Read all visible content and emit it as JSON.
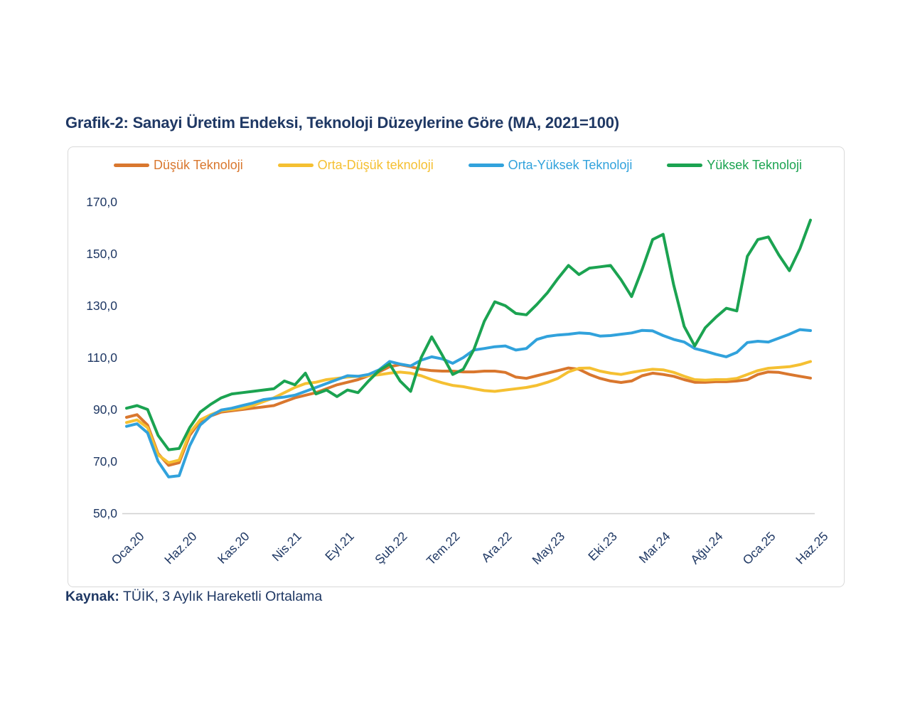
{
  "page": {
    "title": "Grafik-2: Sanayi Üretim Endeksi, Teknoloji Düzeylerine Göre (MA, 2021=100)",
    "source_label": "Kaynak:",
    "source_text": " TÜİK, 3 Aylık Hareketli Ortalama"
  },
  "colors": {
    "title_text": "#1f3864",
    "axis_text": "#1f3864",
    "card_border": "#d9d9d9",
    "axis_line": "#cfcfcf",
    "series_low": "#d9772e",
    "series_midlow": "#f5c032",
    "series_midhigh": "#31a2dc",
    "series_high": "#1ba351"
  },
  "chart_data": {
    "type": "line",
    "title": "Grafik-2: Sanayi Üretim Endeksi, Teknoloji Düzeylerine Göre (MA, 2021=100)",
    "xlabel": "",
    "ylabel": "",
    "ylim": [
      50,
      170
    ],
    "months_count": 66,
    "x_range_note": "monthly from Oca.20 (Jan 2020) to Haz.25 (Jun 2025), 3-month moving average, 2021=100",
    "grid": "none, baseline only",
    "legend_position": "top",
    "y_ticks": [
      {
        "value": 170,
        "label": "170,0"
      },
      {
        "value": 150,
        "label": "150,0"
      },
      {
        "value": 130,
        "label": "130,0"
      },
      {
        "value": 110,
        "label": "110,0"
      },
      {
        "value": 90,
        "label": "90,0"
      },
      {
        "value": 70,
        "label": "70,0"
      },
      {
        "value": 50,
        "label": "50,0"
      }
    ],
    "x_ticks": [
      {
        "month": 0,
        "label": "Oca.20"
      },
      {
        "month": 5,
        "label": "Haz.20"
      },
      {
        "month": 10,
        "label": "Kas.20"
      },
      {
        "month": 15,
        "label": "Nis.21"
      },
      {
        "month": 20,
        "label": "Eyl.21"
      },
      {
        "month": 25,
        "label": "Şub.22"
      },
      {
        "month": 30,
        "label": "Tem.22"
      },
      {
        "month": 35,
        "label": "Ara.22"
      },
      {
        "month": 40,
        "label": "May.23"
      },
      {
        "month": 45,
        "label": "Eki.23"
      },
      {
        "month": 50,
        "label": "Mar.24"
      },
      {
        "month": 55,
        "label": "Ağu.24"
      },
      {
        "month": 60,
        "label": "Oca.25"
      },
      {
        "month": 65,
        "label": "Haz.25"
      }
    ],
    "series": [
      {
        "name": "Düşük Teknoloji",
        "color": "#d9772e",
        "values": [
          87,
          88,
          84,
          73,
          68.5,
          69.5,
          80,
          85.5,
          87.5,
          89,
          89.5,
          90,
          90.5,
          91,
          91.5,
          93,
          94.5,
          95.5,
          96.5,
          98,
          99.5,
          100.5,
          101.5,
          103,
          104.5,
          106.5,
          107.3,
          106.5,
          105.5,
          105,
          104.8,
          104.8,
          104.5,
          104.5,
          104.8,
          104.8,
          104.3,
          102.5,
          102,
          103,
          104,
          105,
          106,
          105.5,
          103.5,
          102,
          101,
          100.4,
          101,
          103,
          104,
          103.5,
          102.8,
          101.5,
          100.5,
          100.5,
          100.7,
          100.7,
          101,
          101.5,
          103.5,
          104.5,
          104.3,
          103.5,
          102.8,
          102.1
        ]
      },
      {
        "name": "Orta-Düşük teknoloji",
        "color": "#f5c032",
        "values": [
          85,
          86,
          83,
          72.5,
          69.5,
          70.5,
          81,
          86,
          88,
          89.5,
          90,
          90.5,
          91.5,
          93,
          94.5,
          96.5,
          98.5,
          100,
          100.5,
          101.5,
          102,
          102.5,
          102.8,
          103,
          103.4,
          104,
          104.4,
          104,
          103,
          101.5,
          100.3,
          99.3,
          98.8,
          98,
          97.3,
          97,
          97.5,
          98,
          98.5,
          99.3,
          100.5,
          102,
          104.5,
          105.9,
          106,
          104.8,
          104,
          103.5,
          104.3,
          105,
          105.5,
          105.3,
          104.3,
          102.8,
          101.5,
          101.3,
          101.5,
          101.5,
          102,
          103.5,
          105,
          105.9,
          106.2,
          106.5,
          107.3,
          108.5
        ]
      },
      {
        "name": "Orta-Yüksek Teknoloji",
        "color": "#31a2dc",
        "values": [
          83.5,
          84.5,
          81,
          70,
          64,
          64.5,
          76,
          84,
          87.5,
          89.8,
          90.5,
          91.5,
          92.5,
          93.8,
          94.3,
          94.8,
          95.5,
          97,
          98.5,
          100,
          101.5,
          103,
          102.8,
          103.5,
          105.3,
          108.5,
          107.5,
          106.8,
          109,
          110.3,
          109.5,
          107.8,
          110,
          112.9,
          113.5,
          114.2,
          114.5,
          112.9,
          113.5,
          117,
          118.2,
          118.7,
          119,
          119.5,
          119.3,
          118.3,
          118.5,
          119,
          119.5,
          120.5,
          120.3,
          118.5,
          117,
          116,
          113.5,
          112.5,
          111.3,
          110.3,
          112,
          115.8,
          116.3,
          116,
          117.5,
          119,
          120.8,
          120.4
        ]
      },
      {
        "name": "Yüksek Teknoloji",
        "color": "#1ba351",
        "values": [
          90.5,
          91.5,
          90,
          80,
          74.5,
          75,
          83,
          89,
          92,
          94.5,
          96,
          96.5,
          97,
          97.5,
          98,
          101,
          99.5,
          104,
          96,
          97.5,
          95,
          97.5,
          96.5,
          101,
          105,
          107.5,
          101,
          97,
          110,
          118,
          111,
          103.5,
          105.5,
          113,
          124,
          131.5,
          130,
          127,
          126.5,
          130.5,
          135,
          140.5,
          145.5,
          142,
          144.5,
          145,
          145.5,
          140,
          133.5,
          144,
          155.5,
          157.5,
          138,
          122,
          114.5,
          121.5,
          125.5,
          129,
          128,
          149,
          155.5,
          156.5,
          149.5,
          143.5,
          152,
          163
        ]
      }
    ]
  }
}
